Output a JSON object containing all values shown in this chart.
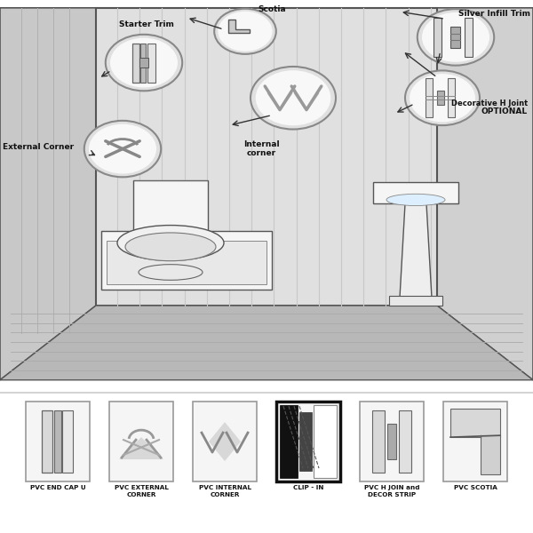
{
  "bg_color": "#ffffff",
  "labels": {
    "starter_trim": "Starter Trim",
    "scotia": "Scotia",
    "silver_infill": "Silver Infill Trim",
    "internal_corner": "Internal\ncorner",
    "external_corner": "External Corner",
    "decorative_h_1": "Decorative H Joint",
    "decorative_h_2": "OPTIONAL"
  },
  "bottom_labels": [
    "PVC END CAP U",
    "PVC EXTERNAL\nCORNER",
    "PVC INTERNAL\nCORNER",
    "CLIP - IN",
    "PVC H JOIN and\nDECOR STRIP",
    "PVC SCOTIA"
  ],
  "wall_main": "#e8e8e8",
  "wall_left": "#cccccc",
  "wall_right": "#d8d8d8",
  "floor_color": "#c0c0c0",
  "panel_line": "#aaaaaa",
  "circle_fill": "#f2f2f2",
  "circle_edge": "#888888",
  "text_dark": "#111111"
}
